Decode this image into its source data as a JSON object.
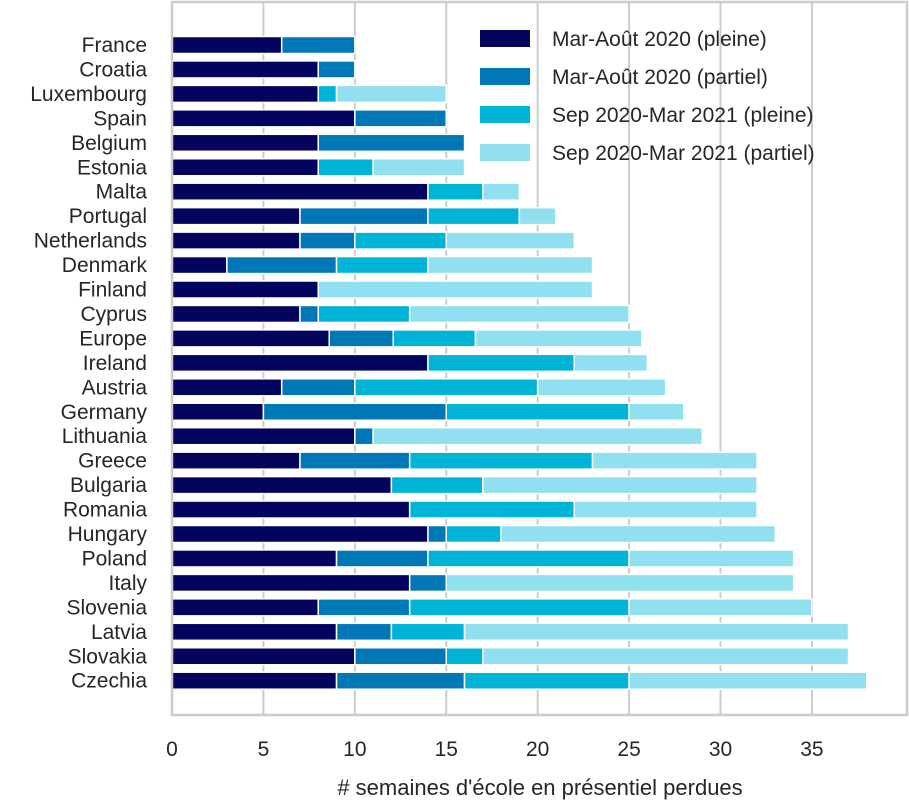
{
  "chart_data": {
    "type": "bar",
    "orientation": "horizontal",
    "stacked": true,
    "title": "",
    "xlabel": "# semaines d'école en présentiel perdues",
    "ylabel": "",
    "xlim": [
      0,
      40.2
    ],
    "xticks": [
      0,
      5,
      10,
      15,
      20,
      25,
      30,
      35
    ],
    "grid": "vertical",
    "legend_position": "top-right",
    "highlight": {
      "category": "Europe",
      "color": "#ff0000"
    },
    "categories": [
      "France",
      "Croatia",
      "Luxembourg",
      "Spain",
      "Belgium",
      "Estonia",
      "Malta",
      "Portugal",
      "Netherlands",
      "Denmark",
      "Finland",
      "Cyprus",
      "Europe",
      "Ireland",
      "Austria",
      "Germany",
      "Lithuania",
      "Greece",
      "Bulgaria",
      "Romania",
      "Hungary",
      "Poland",
      "Italy",
      "Slovenia",
      "Latvia",
      "Slovakia",
      "Czechia"
    ],
    "series": [
      {
        "name": "Mar-Août 2020 (pleine)",
        "color": "#03045e",
        "values": [
          6,
          8,
          8,
          10,
          8,
          8,
          14,
          7,
          7,
          3,
          8,
          7,
          8.6,
          14,
          6,
          5,
          10,
          7,
          12,
          13,
          14,
          9,
          13,
          8,
          9,
          10,
          9
        ]
      },
      {
        "name": "Mar-Août 2020 (partiel)",
        "color": "#0077b6",
        "values": [
          4,
          2,
          0,
          5,
          8,
          0,
          0,
          7,
          3,
          6,
          0,
          1,
          3.5,
          0,
          4,
          10,
          1,
          6,
          0,
          0,
          1,
          5,
          2,
          5,
          3,
          5,
          7
        ]
      },
      {
        "name": "Sep 2020-Mar 2021 (pleine)",
        "color": "#00b4d8",
        "values": [
          0,
          0,
          1,
          0,
          0,
          3,
          3,
          5,
          5,
          5,
          0,
          5,
          4.5,
          8,
          10,
          10,
          0,
          10,
          5,
          9,
          3,
          11,
          0,
          12,
          4,
          2,
          9
        ]
      },
      {
        "name": "Sep 2020-Mar 2021 (partiel)",
        "color": "#90e0ef",
        "values": [
          0,
          0,
          6,
          0,
          0,
          5,
          2,
          2,
          7,
          9,
          15,
          12,
          9.1,
          4,
          7,
          3,
          18,
          9,
          15,
          10,
          15,
          9,
          19,
          10,
          21,
          20,
          13
        ]
      }
    ]
  }
}
